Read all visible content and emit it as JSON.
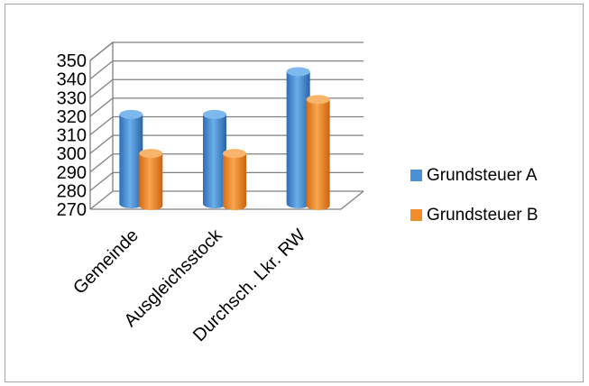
{
  "chart_data": {
    "type": "bar",
    "style": "3d-cylinder",
    "categories": [
      "Gemeinde",
      "Ausgleichsstock",
      "Durchsch. Lkr. RW"
    ],
    "series": [
      {
        "name": "Grundsteuer A",
        "values": [
          320,
          320,
          343
        ],
        "color": "#4a90d9"
      },
      {
        "name": "Grundsteuer B",
        "values": [
          300,
          300,
          329
        ],
        "color": "#f28c28"
      }
    ],
    "y_ticks": [
      "350",
      "340",
      "330",
      "320",
      "310",
      "300",
      "290",
      "280",
      "270"
    ],
    "ylim": [
      270,
      350
    ],
    "grid": true,
    "legend_position": "right"
  }
}
